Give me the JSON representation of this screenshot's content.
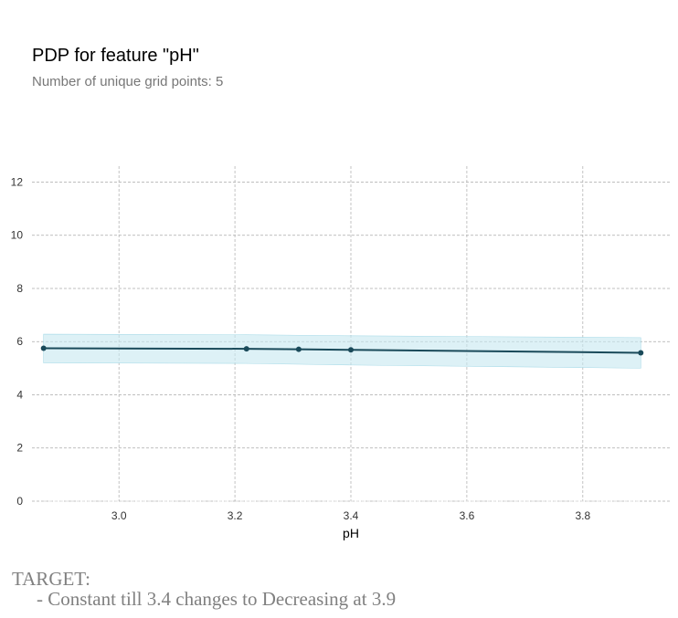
{
  "chart_data": {
    "type": "line",
    "title": "PDP for feature \"pH\"",
    "subtitle": "Number of unique grid points: 5",
    "xlabel": "pH",
    "ylabel": "",
    "xlim": [
      2.85,
      3.95
    ],
    "ylim": [
      0,
      12.6
    ],
    "xticks": [
      3.0,
      3.2,
      3.4,
      3.6,
      3.8
    ],
    "yticks": [
      0,
      2,
      4,
      6,
      8,
      10,
      12
    ],
    "grid": true,
    "series": [
      {
        "x": [
          2.87,
          3.22,
          3.31,
          3.4,
          3.9
        ],
        "y": [
          5.75,
          5.73,
          5.71,
          5.69,
          5.58
        ],
        "lower": [
          5.2,
          5.18,
          5.15,
          5.12,
          5.0
        ],
        "upper": [
          6.28,
          6.26,
          6.24,
          6.22,
          6.15
        ]
      }
    ],
    "colors": {
      "line": "#1a4a5a",
      "band": "#c7e8f0",
      "grid": "#aaaaaa"
    }
  },
  "annotation": {
    "line1": "TARGET:",
    "line2": "- Constant till 3.4 changes to Decreasing at 3.9"
  }
}
